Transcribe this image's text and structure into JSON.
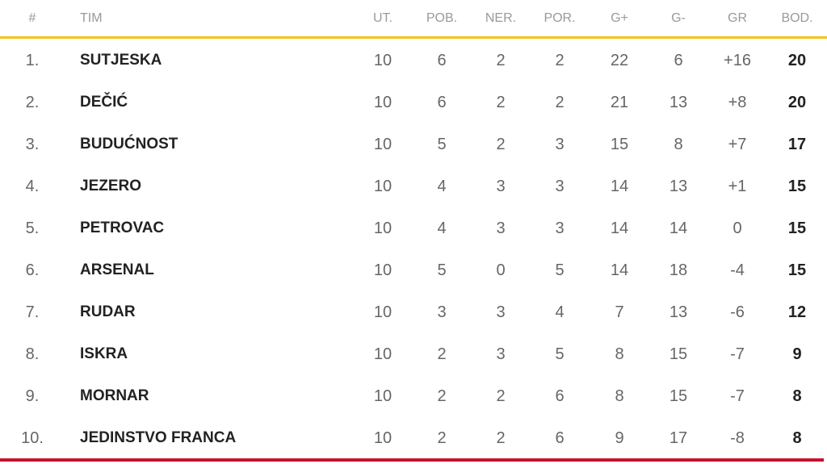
{
  "headers": {
    "pos": "#",
    "team": "TIM",
    "played": "UT.",
    "won": "POB.",
    "drawn": "NER.",
    "lost": "POR.",
    "gf": "G+",
    "ga": "G-",
    "gd": "GR",
    "pts": "BOD."
  },
  "colors": {
    "header_line": "#f2c318",
    "bottom_line": "#c8102e"
  },
  "rows": [
    {
      "pos": "1.",
      "team": "SUTJESKA",
      "played": "10",
      "won": "6",
      "drawn": "2",
      "lost": "2",
      "gf": "22",
      "ga": "6",
      "gd": "+16",
      "pts": "20"
    },
    {
      "pos": "2.",
      "team": "DEČIĆ",
      "played": "10",
      "won": "6",
      "drawn": "2",
      "lost": "2",
      "gf": "21",
      "ga": "13",
      "gd": "+8",
      "pts": "20"
    },
    {
      "pos": "3.",
      "team": "BUDUĆNOST",
      "played": "10",
      "won": "5",
      "drawn": "2",
      "lost": "3",
      "gf": "15",
      "ga": "8",
      "gd": "+7",
      "pts": "17"
    },
    {
      "pos": "4.",
      "team": "JEZERO",
      "played": "10",
      "won": "4",
      "drawn": "3",
      "lost": "3",
      "gf": "14",
      "ga": "13",
      "gd": "+1",
      "pts": "15"
    },
    {
      "pos": "5.",
      "team": "PETROVAC",
      "played": "10",
      "won": "4",
      "drawn": "3",
      "lost": "3",
      "gf": "14",
      "ga": "14",
      "gd": "0",
      "pts": "15"
    },
    {
      "pos": "6.",
      "team": "ARSENAL",
      "played": "10",
      "won": "5",
      "drawn": "0",
      "lost": "5",
      "gf": "14",
      "ga": "18",
      "gd": "-4",
      "pts": "15"
    },
    {
      "pos": "7.",
      "team": "RUDAR",
      "played": "10",
      "won": "3",
      "drawn": "3",
      "lost": "4",
      "gf": "7",
      "ga": "13",
      "gd": "-6",
      "pts": "12"
    },
    {
      "pos": "8.",
      "team": "ISKRA",
      "played": "10",
      "won": "2",
      "drawn": "3",
      "lost": "5",
      "gf": "8",
      "ga": "15",
      "gd": "-7",
      "pts": "9"
    },
    {
      "pos": "9.",
      "team": "MORNAR",
      "played": "10",
      "won": "2",
      "drawn": "2",
      "lost": "6",
      "gf": "8",
      "ga": "15",
      "gd": "-7",
      "pts": "8"
    },
    {
      "pos": "10.",
      "team": "JEDINSTVO FRANCA",
      "played": "10",
      "won": "2",
      "drawn": "2",
      "lost": "6",
      "gf": "9",
      "ga": "17",
      "gd": "-8",
      "pts": "8"
    }
  ]
}
